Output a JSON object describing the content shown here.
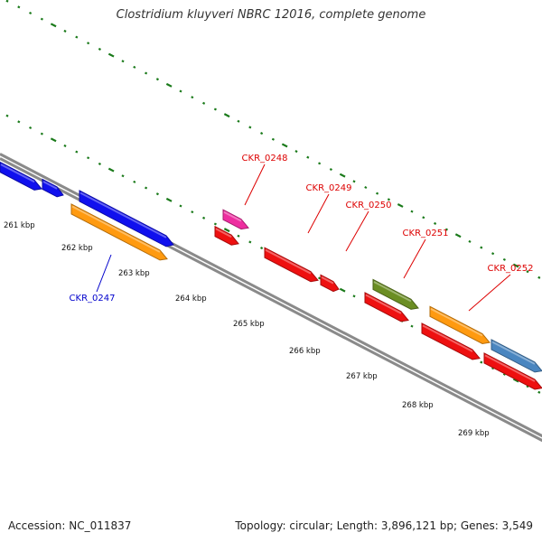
{
  "title": "Clostridium kluyveri NBRC 12016, complete genome",
  "accession": "Accession: NC_011837",
  "summary": "Topology: circular; Length: 3,896,121 bp; Genes: 3,549",
  "colors": {
    "backbone": "#8a8a8a",
    "tick": "#1a7a1a",
    "label_red": "#dd0000",
    "label_blue": "#0000cc"
  },
  "scale_labels": [
    "261 kbp",
    "262 kbp",
    "263 kbp",
    "264 kbp",
    "265 kbp",
    "266 kbp",
    "267 kbp",
    "268 kbp",
    "269 kbp"
  ],
  "genes": [
    {
      "name": "",
      "strand": "+",
      "color": "#1010ee"
    },
    {
      "name": "",
      "strand": "+",
      "color": "#1010ee"
    },
    {
      "name": "",
      "strand": "+",
      "color": "#1010ee"
    },
    {
      "name": "CKR_0247",
      "strand": "-",
      "color": "#ff9a10",
      "label_color": "blue"
    },
    {
      "name": "CKR_0248",
      "strand": "+",
      "color": "#ee2da0",
      "label_color": "red"
    },
    {
      "name": "",
      "strand": "-",
      "color": "#ee1010"
    },
    {
      "name": "",
      "strand": "-",
      "color": "#ee1010"
    },
    {
      "name": "CKR_0249",
      "strand": "-",
      "color": "#ee1010",
      "label_color": "red"
    },
    {
      "name": "CKR_0250",
      "strand": "-",
      "color": "#ee1010",
      "label_color": "red"
    },
    {
      "name": "CKR_0251",
      "strand": "+",
      "color": "#6b8e23",
      "label_color": "red"
    },
    {
      "name": "",
      "strand": "-",
      "color": "#ee1010"
    },
    {
      "name": "CKR_0252",
      "strand": "+",
      "color": "#ff9a10",
      "label_color": "red"
    },
    {
      "name": "",
      "strand": "-",
      "color": "#ee1010"
    },
    {
      "name": "",
      "strand": "+",
      "color": "#4a86c0"
    },
    {
      "name": "",
      "strand": "-",
      "color": "#ee1010"
    }
  ]
}
